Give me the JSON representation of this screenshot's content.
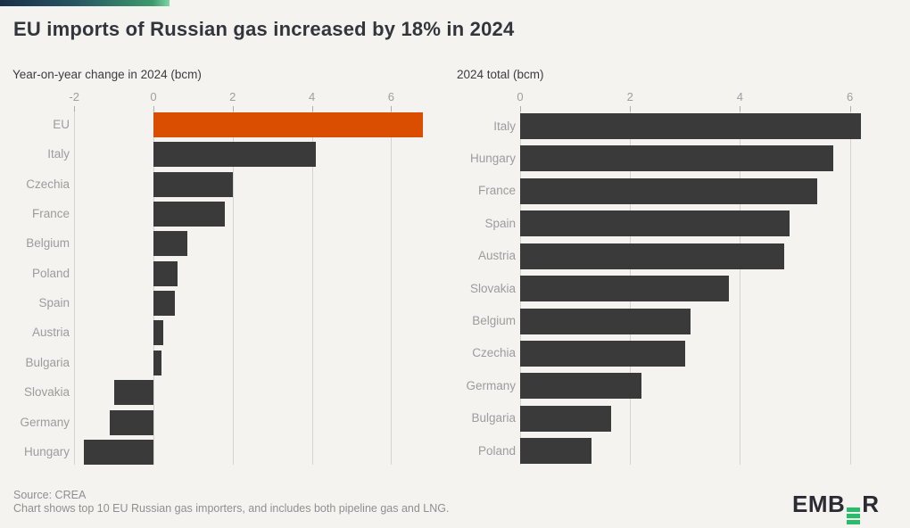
{
  "title": "EU imports of Russian gas increased by 18% in 2024",
  "footer": {
    "source": "Source: CREA",
    "note": "Chart shows top 10 EU Russian gas importers, and includes both pipeline gas and LNG."
  },
  "logo": {
    "name": "EMBER",
    "prefix": "EMB",
    "suffix": "R"
  },
  "colors": {
    "background": "#f4f3f0",
    "bar": "#3a3a3a",
    "highlight": "#d94e01",
    "gridline": "#d4d3d0",
    "axis_text": "#9e9e9e",
    "category_text": "#9c9c9c",
    "title_text": "#32353b",
    "subtitle_text": "#3d3d3d",
    "footer_text": "#8f8f8f",
    "logo_green": "#27bd6a",
    "accent_gradient_start": "#1c2e49",
    "accent_gradient_end": "#7fd4a4"
  },
  "chart_data": [
    {
      "type": "bar",
      "orientation": "horizontal",
      "title": "Year-on-year change in 2024 (bcm)",
      "xlabel": "",
      "ylabel": "",
      "categories": [
        "EU",
        "Italy",
        "Czechia",
        "France",
        "Belgium",
        "Poland",
        "Spain",
        "Austria",
        "Bulgaria",
        "Slovakia",
        "Germany",
        "Hungary"
      ],
      "values": [
        6.8,
        4.1,
        2.0,
        1.8,
        0.85,
        0.6,
        0.55,
        0.25,
        0.2,
        -1.0,
        -1.1,
        -1.75
      ],
      "highlight_category": "EU",
      "xticks": [
        -2,
        0,
        2,
        4,
        6
      ],
      "xlim": [
        -2.1,
        6.9
      ],
      "grid": true,
      "legend": false
    },
    {
      "type": "bar",
      "orientation": "horizontal",
      "title": "2024 total (bcm)",
      "xlabel": "",
      "ylabel": "",
      "categories": [
        "Italy",
        "Hungary",
        "France",
        "Spain",
        "Austria",
        "Slovakia",
        "Belgium",
        "Czechia",
        "Germany",
        "Bulgaria",
        "Poland"
      ],
      "values": [
        6.2,
        5.7,
        5.4,
        4.9,
        4.8,
        3.8,
        3.1,
        3.0,
        2.2,
        1.65,
        1.3
      ],
      "highlight_category": null,
      "xticks": [
        0,
        2,
        4,
        6
      ],
      "xlim": [
        0,
        6.3
      ],
      "grid": true,
      "legend": false
    }
  ]
}
